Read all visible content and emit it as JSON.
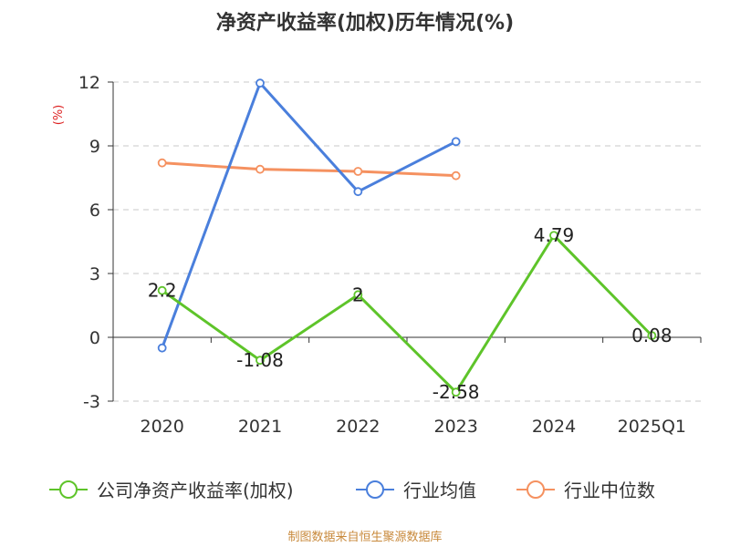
{
  "chart_data": {
    "type": "line",
    "title": "净资产收益率(加权)历年情况(%)",
    "ylabel": "(%)",
    "xlabel": "",
    "categories": [
      "2020",
      "2021",
      "2022",
      "2023",
      "2024",
      "2025Q1"
    ],
    "ylim": [
      -3,
      12
    ],
    "yticks": [
      -3,
      0,
      3,
      6,
      9,
      12
    ],
    "grid": true,
    "legend_position": "bottom",
    "series": [
      {
        "name": "公司净资产收益率(加权)",
        "color": "#5ec42a",
        "values": [
          2.2,
          -1.08,
          2,
          -2.58,
          4.79,
          0.08
        ],
        "data_labels": [
          "2.2",
          "-1.08",
          "2",
          "-2.58",
          "4.79",
          "0.08"
        ]
      },
      {
        "name": "行业均值",
        "color": "#4a7fdc",
        "values": [
          -0.5,
          11.95,
          6.85,
          9.2,
          null,
          null
        ],
        "data_labels": null
      },
      {
        "name": "行业中位数",
        "color": "#f59160",
        "values": [
          8.2,
          7.9,
          7.8,
          7.6,
          null,
          null
        ],
        "data_labels": null
      }
    ]
  },
  "footer": "制图数据来自恒生聚源数据库"
}
